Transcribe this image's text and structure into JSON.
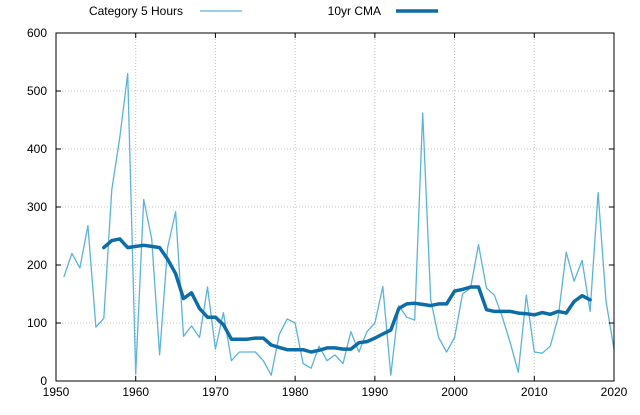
{
  "chart_data": {
    "type": "line",
    "xlim": [
      1950,
      2020
    ],
    "ylim": [
      0,
      600
    ],
    "xticks": [
      1950,
      1960,
      1970,
      1980,
      1990,
      2000,
      2010,
      2020
    ],
    "yticks": [
      0,
      100,
      200,
      300,
      400,
      500,
      600
    ],
    "grid": true,
    "legend_position": "top",
    "series": [
      {
        "name": "Category 5 Hours",
        "color": "#5ab4dc",
        "style": "thin",
        "x": [
          1951,
          1952,
          1953,
          1954,
          1955,
          1956,
          1957,
          1958,
          1959,
          1960,
          1961,
          1962,
          1963,
          1964,
          1965,
          1966,
          1967,
          1968,
          1969,
          1970,
          1971,
          1972,
          1973,
          1974,
          1975,
          1976,
          1977,
          1978,
          1979,
          1980,
          1981,
          1982,
          1983,
          1984,
          1985,
          1986,
          1987,
          1988,
          1989,
          1990,
          1991,
          1992,
          1993,
          1994,
          1995,
          1996,
          1997,
          1998,
          1999,
          2000,
          2001,
          2002,
          2003,
          2004,
          2005,
          2006,
          2007,
          2008,
          2009,
          2010,
          2011,
          2012,
          2013,
          2014,
          2015,
          2016,
          2017,
          2018,
          2019,
          2020
        ],
        "values": [
          180,
          220,
          195,
          268,
          93,
          108,
          330,
          420,
          530,
          12,
          313,
          245,
          45,
          230,
          292,
          77,
          95,
          75,
          162,
          55,
          118,
          35,
          50,
          50,
          50,
          35,
          10,
          80,
          107,
          100,
          30,
          22,
          60,
          35,
          45,
          30,
          85,
          50,
          85,
          100,
          163,
          10,
          130,
          110,
          105,
          462,
          140,
          75,
          50,
          75,
          150,
          160,
          235,
          160,
          148,
          110,
          65,
          15,
          148,
          50,
          48,
          60,
          110,
          222,
          172,
          208,
          120,
          325,
          138,
          55
        ]
      },
      {
        "name": "10yr CMA",
        "color": "#0e6da6",
        "style": "thick",
        "x": [
          1956,
          1957,
          1958,
          1959,
          1960,
          1961,
          1962,
          1963,
          1964,
          1965,
          1966,
          1967,
          1968,
          1969,
          1970,
          1971,
          1972,
          1973,
          1974,
          1975,
          1976,
          1977,
          1978,
          1979,
          1980,
          1981,
          1982,
          1983,
          1984,
          1985,
          1986,
          1987,
          1988,
          1989,
          1990,
          1991,
          1992,
          1993,
          1994,
          1995,
          1996,
          1997,
          1998,
          1999,
          2000,
          2001,
          2002,
          2003,
          2004,
          2005,
          2006,
          2007,
          2008,
          2009,
          2010,
          2011,
          2012,
          2013,
          2014,
          2015,
          2016,
          2017
        ],
        "values": [
          230,
          242,
          245,
          230,
          232,
          234,
          232,
          230,
          210,
          185,
          142,
          152,
          125,
          110,
          110,
          97,
          72,
          72,
          72,
          74,
          74,
          62,
          58,
          54,
          54,
          54,
          50,
          53,
          57,
          57,
          55,
          55,
          66,
          68,
          74,
          81,
          88,
          125,
          133,
          134,
          132,
          130,
          133,
          133,
          155,
          158,
          162,
          162,
          123,
          120,
          120,
          120,
          117,
          116,
          114,
          118,
          115,
          120,
          117,
          137,
          147,
          140
        ]
      }
    ]
  }
}
